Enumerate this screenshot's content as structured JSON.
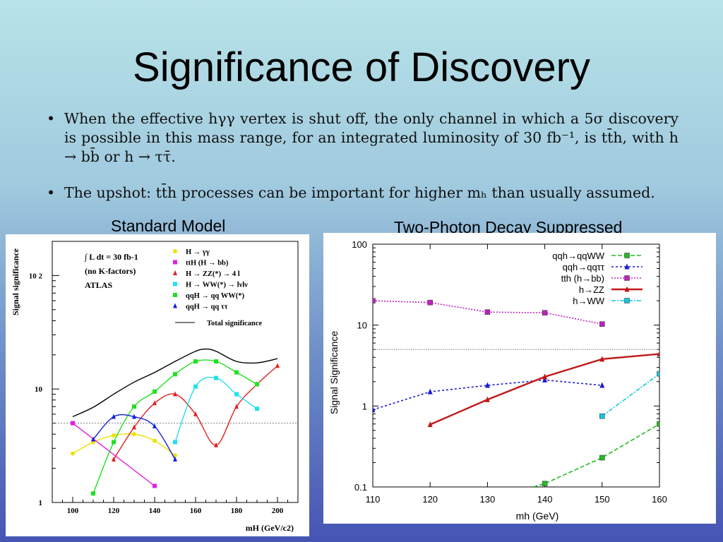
{
  "slide": {
    "title": "Significance of Discovery",
    "bullets": [
      "When the effective hγγ vertex is shut off, the only channel in which a 5σ discovery is possible in this mass range, for an integrated luminosity of 30 fb⁻¹, is tt̄h, with h → bb̄ or h → ττ̄.",
      "The upshot: tt̄h processes can be important for higher mₕ than usually assumed."
    ],
    "bullet_symbol": "•",
    "label_left": "Standard Model",
    "label_right": "Two-Photon Decay Suppressed"
  },
  "chart_data": [
    {
      "type": "line",
      "xlabel": "mH (GeV/c2)",
      "ylabel": "Signal significance",
      "xlim": [
        90,
        210
      ],
      "ylim": [
        1,
        200
      ],
      "y_scale": "log",
      "x_ticks": [
        100,
        120,
        140,
        160,
        180,
        200
      ],
      "y_ticks": [
        {
          "v": 1,
          "label": "1"
        },
        {
          "v": 10,
          "label": "10"
        },
        {
          "v": 100,
          "label": "10 2"
        }
      ],
      "info": [
        "∫ L dt = 30 fb-1",
        "(no K-factors)",
        "ATLAS"
      ],
      "reference_line": 5,
      "legend_position": "top-right",
      "series": [
        {
          "name": "H → γγ",
          "color": "#f0e000",
          "marker": "circle",
          "x": [
            100,
            110,
            120,
            130,
            140,
            150
          ],
          "y": [
            2.7,
            3.4,
            3.9,
            4.0,
            3.5,
            2.6
          ]
        },
        {
          "name": "ttH (H → bb)",
          "color": "#e020e0",
          "marker": "square",
          "x": [
            100,
            140
          ],
          "y": [
            5.0,
            1.4
          ]
        },
        {
          "name": "H → ZZ(*) → 4 l",
          "color": "#e02020",
          "marker": "triangle",
          "x": [
            120,
            130,
            140,
            150,
            160,
            170,
            180,
            190,
            200
          ],
          "y": [
            2.4,
            4.6,
            7.5,
            9.0,
            6.0,
            3.2,
            7.0,
            11.0,
            16.0
          ]
        },
        {
          "name": "H → WW(*) → lνlν",
          "color": "#20e0f0",
          "marker": "square",
          "x": [
            150,
            160,
            170,
            180,
            190
          ],
          "y": [
            3.4,
            10.5,
            12.5,
            9.0,
            6.7
          ]
        },
        {
          "name": "qqH → qq WW(*)",
          "color": "#20e020",
          "marker": "square",
          "x": [
            110,
            120,
            130,
            140,
            150,
            160,
            170,
            180,
            190
          ],
          "y": [
            1.2,
            3.4,
            7.0,
            9.5,
            13.5,
            17.5,
            17.5,
            14.0,
            11.0
          ]
        },
        {
          "name": "qqH → qq ττ",
          "color": "#1020e0",
          "marker": "triangle",
          "x": [
            110,
            120,
            130,
            140,
            150
          ],
          "y": [
            3.6,
            5.7,
            5.7,
            4.7,
            2.4
          ]
        },
        {
          "name": "Total significance",
          "color": "#000000",
          "marker": "none",
          "x": [
            100,
            110,
            120,
            130,
            140,
            150,
            160,
            165,
            170,
            180,
            190,
            200
          ],
          "y": [
            5.7,
            6.9,
            9.0,
            11.5,
            14.0,
            17.5,
            21.5,
            22.5,
            21.5,
            17.5,
            17.0,
            18.5
          ]
        }
      ]
    },
    {
      "type": "line",
      "xlabel": "mh (GeV)",
      "ylabel": "Signal Significance",
      "xlim": [
        110,
        160
      ],
      "ylim": [
        0.1,
        100
      ],
      "y_scale": "log",
      "x_ticks": [
        110,
        120,
        130,
        140,
        150,
        160
      ],
      "y_ticks": [
        {
          "v": 0.1,
          "label": "0.1"
        },
        {
          "v": 1,
          "label": "1"
        },
        {
          "v": 10,
          "label": "10"
        },
        {
          "v": 100,
          "label": "100"
        }
      ],
      "reference_line": 5,
      "legend_position": "top-right",
      "series": [
        {
          "name": "qqh→qqWW",
          "color": "#22bb22",
          "marker": "square",
          "dash": "6,3",
          "x": [
            138,
            140,
            150,
            160
          ],
          "y": [
            0.1,
            0.11,
            0.23,
            0.6
          ]
        },
        {
          "name": "qqh→qqττ",
          "color": "#1a1ad0",
          "marker": "triangle",
          "dash": "3,3",
          "x": [
            110,
            120,
            130,
            140,
            150
          ],
          "y": [
            0.9,
            1.5,
            1.8,
            2.1,
            1.8
          ]
        },
        {
          "name": "tth (h→bb)",
          "color": "#c020c0",
          "marker": "square",
          "dash": "2,2",
          "x": [
            110,
            120,
            130,
            140,
            150
          ],
          "y": [
            20,
            19,
            14.5,
            14.2,
            10.3
          ]
        },
        {
          "name": "h→ZZ",
          "color": "#c01818",
          "marker": "triangle",
          "dash": "",
          "x": [
            120,
            130,
            140,
            150,
            160
          ],
          "y": [
            0.59,
            1.2,
            2.3,
            3.8,
            4.4
          ]
        },
        {
          "name": "h→WW",
          "color": "#10c8e0",
          "marker": "square",
          "dash": "6,2,2,2",
          "x": [
            150,
            160
          ],
          "y": [
            0.75,
            2.5
          ]
        }
      ]
    }
  ]
}
